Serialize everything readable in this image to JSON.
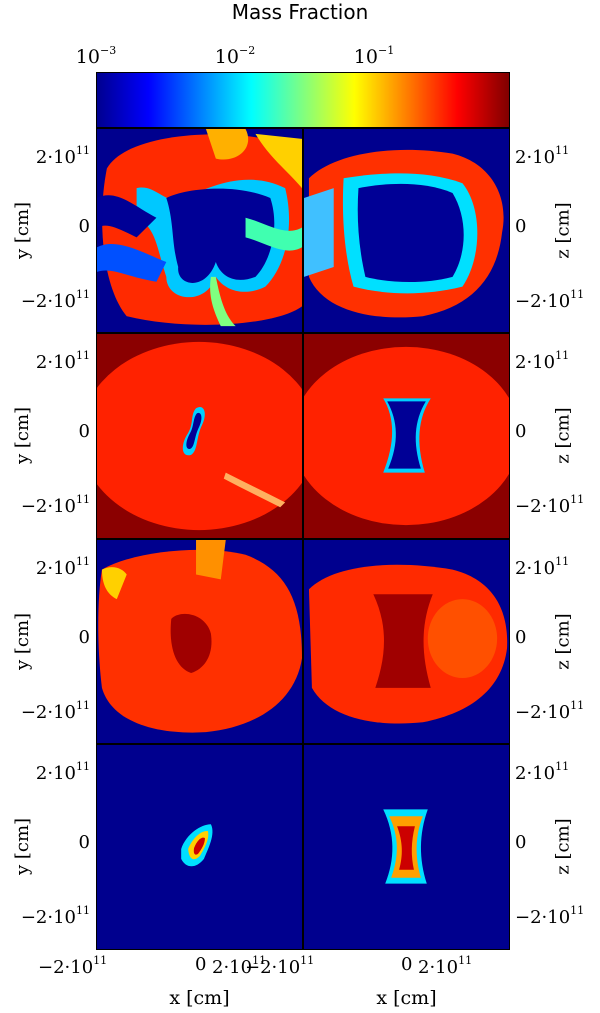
{
  "title": "Mass Fraction",
  "colorbar": {
    "scale": "log",
    "range": [
      0.001,
      1
    ],
    "ticks": [
      {
        "base": "10",
        "exp": "−3"
      },
      {
        "base": "10",
        "exp": "−2"
      },
      {
        "base": "10",
        "exp": "−1"
      }
    ],
    "colormap": [
      "#00008f",
      "#0000ff",
      "#0080ff",
      "#00ffff",
      "#80ff80",
      "#ffff00",
      "#ff8000",
      "#ff0000",
      "#800000"
    ]
  },
  "chart_data": {
    "type": "heatmap",
    "layout": "4 rows × 2 columns of field images",
    "columns": [
      {
        "xlabel": "x [cm]",
        "ylabel": "y [cm]"
      },
      {
        "xlabel": "x [cm]",
        "ylabel": "z [cm]"
      }
    ],
    "axis_ticks": {
      "y": [
        {
          "pre": "2·10",
          "exp": "11"
        },
        {
          "pre": "0",
          "exp": ""
        },
        {
          "pre": "−2·10",
          "exp": "11"
        }
      ],
      "x": [
        {
          "pre": "−2·10",
          "exp": "11"
        },
        {
          "pre": "0",
          "exp": ""
        },
        {
          "pre": "2·10",
          "exp": "11"
        }
      ]
    },
    "axis_range_cm": [
      -280000000000.0,
      280000000000.0
    ],
    "panels": [
      {
        "row": 1,
        "col": 1,
        "background": "#00008e",
        "features": [
          "red-orange outer shell",
          "dark blue inner cavity",
          "cyan/yellow filaments"
        ]
      },
      {
        "row": 1,
        "col": 2,
        "background": "#00008e",
        "features": [
          "red-orange shell ring",
          "dark blue inner cavity"
        ]
      },
      {
        "row": 2,
        "col": 1,
        "background": "#8b0000",
        "features": [
          "red field",
          "small blue central blob"
        ]
      },
      {
        "row": 2,
        "col": 2,
        "background": "#8b0000",
        "features": [
          "red field",
          "blue hourglass core"
        ]
      },
      {
        "row": 3,
        "col": 1,
        "background": "#00008e",
        "features": [
          "large red/orange ejecta",
          "dark red central blob"
        ]
      },
      {
        "row": 3,
        "col": 2,
        "background": "#00008e",
        "features": [
          "red/orange ejecta",
          "dark red hourglass core"
        ]
      },
      {
        "row": 4,
        "col": 1,
        "background": "#00008e",
        "features": [
          "small central cyan-yellow-red blob"
        ]
      },
      {
        "row": 4,
        "col": 2,
        "background": "#00008e",
        "features": [
          "hourglass cyan-yellow-red core"
        ]
      }
    ]
  }
}
